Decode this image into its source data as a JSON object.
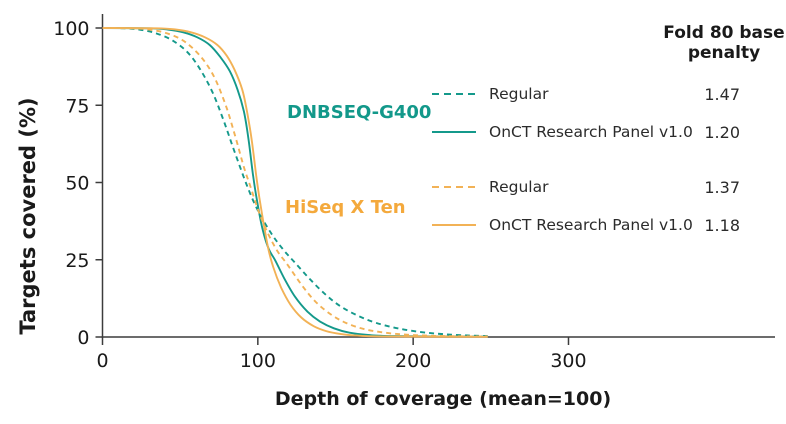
{
  "chart_data": {
    "type": "line",
    "title": "",
    "xlabel": "Depth of coverage (mean=100)",
    "ylabel": "Targets covered (%)",
    "xlim": [
      0,
      433
    ],
    "ylim": [
      0,
      100
    ],
    "x_ticks": [
      0,
      100,
      200,
      300
    ],
    "y_ticks": [
      0,
      25,
      50,
      75,
      100
    ],
    "grid": false,
    "legend_position": "right",
    "legend_header": "Fold 80 base penalty",
    "colors": {
      "teal": "#14998b",
      "orange": "#f2b256",
      "axis": "#3c3c3c",
      "text": "#1a1a1a"
    },
    "groups": [
      {
        "label": "DNBSEQ-G400",
        "color": "#12988a"
      },
      {
        "label": "HiSeq X Ten",
        "color": "#f4a93c"
      }
    ],
    "series": [
      {
        "name": "Regular",
        "group": "DNBSEQ-G400",
        "style": "dashed",
        "color": "#14998b",
        "fold80": "1.47",
        "points": [
          [
            0,
            100
          ],
          [
            15,
            99.9
          ],
          [
            25,
            99.4
          ],
          [
            35,
            98.2
          ],
          [
            45,
            96
          ],
          [
            55,
            92
          ],
          [
            63,
            86.5
          ],
          [
            71,
            79
          ],
          [
            78,
            70
          ],
          [
            85,
            60
          ],
          [
            93,
            49
          ],
          [
            100,
            41
          ],
          [
            108,
            34
          ],
          [
            116,
            28.5
          ],
          [
            124,
            24
          ],
          [
            133,
            19
          ],
          [
            143,
            14
          ],
          [
            153,
            10
          ],
          [
            164,
            7
          ],
          [
            176,
            4.6
          ],
          [
            190,
            2.8
          ],
          [
            205,
            1.6
          ],
          [
            220,
            0.9
          ],
          [
            235,
            0.5
          ],
          [
            248,
            0.3
          ]
        ]
      },
      {
        "name": "OnCT Research Panel v1.0",
        "group": "DNBSEQ-G400",
        "style": "solid",
        "color": "#14998b",
        "fold80": "1.20",
        "points": [
          [
            0,
            100
          ],
          [
            30,
            99.9
          ],
          [
            42,
            99.5
          ],
          [
            52,
            98.6
          ],
          [
            61,
            97
          ],
          [
            69,
            94.5
          ],
          [
            76,
            90.5
          ],
          [
            82,
            86
          ],
          [
            87,
            80
          ],
          [
            91,
            73
          ],
          [
            94,
            64
          ],
          [
            97,
            52
          ],
          [
            99.5,
            44
          ],
          [
            103,
            35
          ],
          [
            107,
            28.5
          ],
          [
            111,
            25
          ],
          [
            117,
            19
          ],
          [
            124,
            13
          ],
          [
            132,
            8.2
          ],
          [
            140,
            5
          ],
          [
            149,
            2.8
          ],
          [
            159,
            1.4
          ],
          [
            171,
            0.65
          ],
          [
            188,
            0.28
          ],
          [
            248,
            0.12
          ]
        ]
      },
      {
        "name": "Regular",
        "group": "HiSeq X Ten",
        "style": "dashed",
        "color": "#f2b256",
        "fold80": "1.37",
        "points": [
          [
            0,
            100
          ],
          [
            20,
            99.9
          ],
          [
            30,
            99.5
          ],
          [
            40,
            98.5
          ],
          [
            50,
            96.5
          ],
          [
            58,
            93.5
          ],
          [
            66,
            89
          ],
          [
            73,
            83
          ],
          [
            80,
            74
          ],
          [
            86,
            64
          ],
          [
            91,
            55
          ],
          [
            95,
            49
          ],
          [
            101,
            40
          ],
          [
            107,
            33
          ],
          [
            113,
            27.5
          ],
          [
            119,
            23.5
          ],
          [
            128,
            17
          ],
          [
            137,
            11.5
          ],
          [
            147,
            7.3
          ],
          [
            157,
            4.5
          ],
          [
            169,
            2.5
          ],
          [
            182,
            1.4
          ],
          [
            196,
            0.75
          ],
          [
            212,
            0.4
          ],
          [
            230,
            0.22
          ],
          [
            248,
            0.15
          ]
        ]
      },
      {
        "name": "OnCT Research Panel v1.0",
        "group": "HiSeq X Ten",
        "style": "solid",
        "color": "#f2b256",
        "fold80": "1.18",
        "points": [
          [
            0,
            100
          ],
          [
            35,
            99.9
          ],
          [
            47,
            99.5
          ],
          [
            57,
            98.6
          ],
          [
            66,
            97
          ],
          [
            74,
            94.5
          ],
          [
            80,
            91
          ],
          [
            85,
            86.5
          ],
          [
            90,
            80
          ],
          [
            93,
            73
          ],
          [
            96,
            64
          ],
          [
            99,
            52
          ],
          [
            101,
            45
          ],
          [
            104,
            36
          ],
          [
            107,
            28
          ],
          [
            110,
            22.5
          ],
          [
            115,
            16
          ],
          [
            121,
            10.5
          ],
          [
            128,
            6.3
          ],
          [
            136,
            3.5
          ],
          [
            144,
            1.9
          ],
          [
            153,
            1
          ],
          [
            164,
            0.45
          ],
          [
            180,
            0.2
          ],
          [
            248,
            0.08
          ]
        ]
      }
    ]
  }
}
